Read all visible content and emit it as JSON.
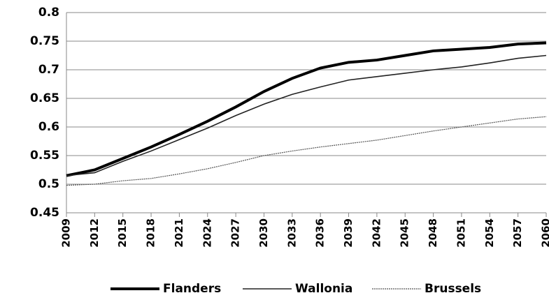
{
  "chart_data": {
    "type": "line",
    "x": [
      2009,
      2012,
      2015,
      2018,
      2021,
      2024,
      2027,
      2030,
      2033,
      2036,
      2039,
      2042,
      2045,
      2048,
      2051,
      2054,
      2057,
      2060
    ],
    "series": [
      {
        "name": "Flanders",
        "color": "#000000",
        "values": [
          0.515,
          0.525,
          0.545,
          0.565,
          0.587,
          0.61,
          0.635,
          0.662,
          0.685,
          0.703,
          0.713,
          0.717,
          0.725,
          0.733,
          0.736,
          0.739,
          0.745,
          0.747
        ]
      },
      {
        "name": "Wallonia",
        "color": "#222222",
        "values": [
          0.515,
          0.52,
          0.54,
          0.558,
          0.578,
          0.598,
          0.62,
          0.64,
          0.657,
          0.67,
          0.682,
          0.688,
          0.694,
          0.7,
          0.705,
          0.712,
          0.72,
          0.725
        ]
      },
      {
        "name": "Brussels",
        "color": "#555555",
        "values": [
          0.498,
          0.5,
          0.506,
          0.51,
          0.518,
          0.527,
          0.538,
          0.55,
          0.558,
          0.565,
          0.571,
          0.577,
          0.585,
          0.593,
          0.6,
          0.607,
          0.614,
          0.618
        ]
      }
    ],
    "xlim": [
      2009,
      2060
    ],
    "xticks": [
      2009,
      2012,
      2015,
      2018,
      2021,
      2024,
      2027,
      2030,
      2033,
      2036,
      2039,
      2042,
      2045,
      2048,
      2051,
      2054,
      2057,
      2060
    ],
    "ylim": [
      0.45,
      0.8
    ],
    "yticks": [
      0.45,
      0.5,
      0.55,
      0.6,
      0.65,
      0.7,
      0.75,
      0.8
    ],
    "grid": true,
    "legend": "bottom"
  }
}
